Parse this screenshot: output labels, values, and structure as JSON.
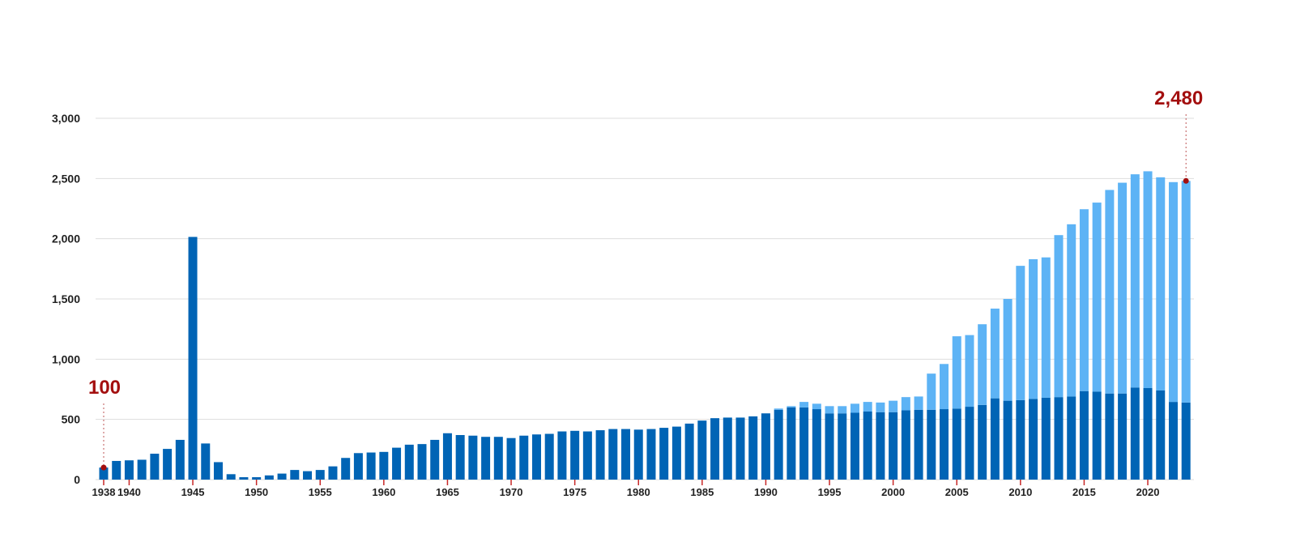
{
  "chart_data": {
    "type": "bar",
    "stacked": true,
    "title": "",
    "xlabel": "",
    "ylabel": "",
    "ylim": [
      0,
      3000
    ],
    "yticks": [
      "0",
      "500",
      "1,000",
      "1,500",
      "2,000",
      "2,500",
      "3,000"
    ],
    "ytick_values": [
      0,
      500,
      1000,
      1500,
      2000,
      2500,
      3000
    ],
    "xticks": [
      "1938",
      "1940",
      "1945",
      "1950",
      "1955",
      "1960",
      "1965",
      "1970",
      "1975",
      "1980",
      "1985",
      "1990",
      "1995",
      "2000",
      "2005",
      "2010",
      "2015",
      "2020"
    ],
    "grid": true,
    "legend": "none",
    "colors": {
      "series1": "#0064b5",
      "series2": "#5db3f5",
      "annotation": "#a30f0f",
      "grid": "#dddddd",
      "tick": "#c62828"
    },
    "categories": [
      1938,
      1939,
      1940,
      1941,
      1942,
      1943,
      1944,
      1945,
      1946,
      1947,
      1948,
      1949,
      1950,
      1951,
      1952,
      1953,
      1954,
      1955,
      1956,
      1957,
      1958,
      1959,
      1960,
      1961,
      1962,
      1963,
      1964,
      1965,
      1966,
      1967,
      1968,
      1969,
      1970,
      1971,
      1972,
      1973,
      1974,
      1975,
      1976,
      1977,
      1978,
      1979,
      1980,
      1981,
      1982,
      1983,
      1984,
      1985,
      1986,
      1987,
      1988,
      1989,
      1990,
      1991,
      1992,
      1993,
      1994,
      1995,
      1996,
      1997,
      1998,
      1999,
      2000,
      2001,
      2002,
      2003,
      2004,
      2005,
      2006,
      2007,
      2008,
      2009,
      2010,
      2011,
      2012,
      2013,
      2014,
      2015,
      2016,
      2017,
      2018,
      2019,
      2020,
      2021,
      2022,
      2023
    ],
    "series": [
      {
        "values": [
          100,
          155,
          160,
          165,
          215,
          255,
          330,
          2015,
          300,
          145,
          45,
          20,
          20,
          35,
          50,
          80,
          70,
          80,
          110,
          180,
          220,
          225,
          230,
          265,
          290,
          295,
          330,
          385,
          370,
          365,
          355,
          355,
          345,
          365,
          375,
          380,
          400,
          405,
          400,
          410,
          420,
          420,
          415,
          420,
          430,
          440,
          465,
          490,
          510,
          515,
          515,
          525,
          550,
          580,
          600,
          600,
          585,
          550,
          550,
          555,
          565,
          560,
          560,
          575,
          580,
          580,
          585,
          590,
          605,
          620,
          675,
          655,
          660,
          670,
          680,
          685,
          690,
          735,
          730,
          715,
          715,
          765,
          760,
          740,
          645,
          640
        ]
      },
      {
        "values": [
          0,
          0,
          0,
          0,
          0,
          0,
          0,
          0,
          0,
          0,
          0,
          0,
          0,
          0,
          0,
          0,
          0,
          0,
          0,
          0,
          0,
          0,
          0,
          0,
          0,
          0,
          0,
          0,
          0,
          0,
          0,
          0,
          0,
          0,
          0,
          0,
          0,
          0,
          0,
          0,
          0,
          0,
          0,
          0,
          0,
          0,
          0,
          0,
          0,
          0,
          0,
          0,
          0,
          10,
          10,
          45,
          45,
          60,
          60,
          75,
          80,
          80,
          95,
          110,
          110,
          300,
          375,
          600,
          595,
          670,
          745,
          845,
          1115,
          1160,
          1165,
          1345,
          1430,
          1510,
          1570,
          1690,
          1750,
          1770,
          1800,
          1770,
          1825,
          1840
        ]
      }
    ],
    "annotations": [
      {
        "label": "100",
        "category": 1938,
        "value": 100
      },
      {
        "label": "2,480",
        "category": 2023,
        "value": 2480
      }
    ]
  }
}
